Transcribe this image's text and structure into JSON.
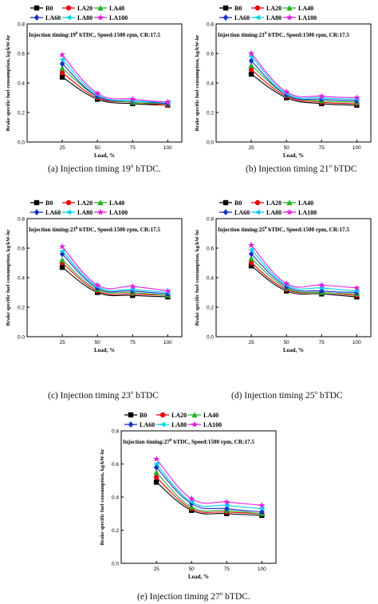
{
  "chart_data": [
    {
      "type": "line",
      "annotation": "Injection timing:19",
      "annotation_sup": "0",
      "annotation_rest": " bTDC, Speed:1500 rpm, CR:17.5",
      "caption": "(a) Injection timing 19",
      "caption_sup": "o",
      "caption_rest": " bTDC.",
      "xlabel": "Load, %",
      "ylabel": "Brake specific fuel consumption, kg/kW-hr",
      "x": [
        25,
        50,
        75,
        100
      ],
      "xlim": [
        0,
        110
      ],
      "ylim": [
        0.0,
        0.8
      ],
      "yticks": [
        0.0,
        0.2,
        0.4,
        0.6,
        0.8
      ],
      "xticks": [
        25,
        50,
        75,
        100
      ],
      "legend": "top-left",
      "series": [
        {
          "name": "B0",
          "values": [
            0.44,
            0.29,
            0.26,
            0.25
          ]
        },
        {
          "name": "LA20",
          "values": [
            0.47,
            0.3,
            0.27,
            0.25
          ]
        },
        {
          "name": "LA40",
          "values": [
            0.5,
            0.31,
            0.27,
            0.26
          ]
        },
        {
          "name": "LA60",
          "values": [
            0.53,
            0.31,
            0.28,
            0.26
          ]
        },
        {
          "name": "LA80",
          "values": [
            0.56,
            0.32,
            0.28,
            0.27
          ]
        },
        {
          "name": "LA100",
          "values": [
            0.59,
            0.33,
            0.29,
            0.27
          ]
        }
      ]
    },
    {
      "type": "line",
      "annotation": "Injection timing:21",
      "annotation_sup": "0",
      "annotation_rest": " bTDC, Speed:1500 rpm, CR:17.5",
      "caption": "(b) Injection timing 21",
      "caption_sup": "o",
      "caption_rest": " bTDC",
      "xlabel": "Load, %",
      "ylabel": "Brake specific fuel consumption, kg/kW-hr",
      "x": [
        25,
        50,
        75,
        100
      ],
      "xlim": [
        0,
        110
      ],
      "ylim": [
        0.0,
        0.8
      ],
      "yticks": [
        0.0,
        0.2,
        0.4,
        0.6,
        0.8
      ],
      "xticks": [
        25,
        50,
        75,
        100
      ],
      "legend": "top-left",
      "series": [
        {
          "name": "B0",
          "values": [
            0.46,
            0.3,
            0.26,
            0.25
          ]
        },
        {
          "name": "LA20",
          "values": [
            0.49,
            0.31,
            0.27,
            0.26
          ]
        },
        {
          "name": "LA40",
          "values": [
            0.52,
            0.32,
            0.28,
            0.27
          ]
        },
        {
          "name": "LA60",
          "values": [
            0.55,
            0.32,
            0.29,
            0.28
          ]
        },
        {
          "name": "LA80",
          "values": [
            0.58,
            0.33,
            0.3,
            0.29
          ]
        },
        {
          "name": "LA100",
          "values": [
            0.6,
            0.34,
            0.31,
            0.3
          ]
        }
      ]
    },
    {
      "type": "line",
      "annotation": "Injection timing:23",
      "annotation_sup": "0",
      "annotation_rest": " bTDC, Speed:1500 rpm, CR:17.5",
      "caption": "(c) Injection timing 23",
      "caption_sup": "o",
      "caption_rest": " bTDC",
      "xlabel": "Load, %",
      "ylabel": "Brake specific fuel consumption, kg/kW-hr",
      "x": [
        25,
        50,
        75,
        100
      ],
      "xlim": [
        0,
        110
      ],
      "ylim": [
        0.0,
        0.8
      ],
      "yticks": [
        0.0,
        0.2,
        0.4,
        0.6,
        0.8
      ],
      "xticks": [
        25,
        50,
        75,
        100
      ],
      "legend": "top-left",
      "series": [
        {
          "name": "B0",
          "values": [
            0.47,
            0.3,
            0.28,
            0.27
          ]
        },
        {
          "name": "LA20",
          "values": [
            0.5,
            0.31,
            0.29,
            0.28
          ]
        },
        {
          "name": "LA40",
          "values": [
            0.52,
            0.32,
            0.3,
            0.28
          ]
        },
        {
          "name": "LA60",
          "values": [
            0.56,
            0.33,
            0.31,
            0.29
          ]
        },
        {
          "name": "LA80",
          "values": [
            0.58,
            0.34,
            0.32,
            0.3
          ]
        },
        {
          "name": "LA100",
          "values": [
            0.61,
            0.35,
            0.34,
            0.31
          ]
        }
      ]
    },
    {
      "type": "line",
      "annotation": "Injection timing:25",
      "annotation_sup": "0",
      "annotation_rest": " bTDC, Speed:1500 rpm, CR:17.5",
      "caption": "(d) Injection timing 25",
      "caption_sup": "o",
      "caption_rest": " bTDC",
      "xlabel": "Load, %",
      "ylabel": "Brake specific fuel consumption, kg/kW-hr",
      "x": [
        25,
        50,
        75,
        100
      ],
      "xlim": [
        0,
        110
      ],
      "ylim": [
        0.0,
        0.8
      ],
      "yticks": [
        0.0,
        0.2,
        0.4,
        0.6,
        0.8
      ],
      "xticks": [
        25,
        50,
        75,
        100
      ],
      "legend": "top-left",
      "series": [
        {
          "name": "B0",
          "values": [
            0.48,
            0.31,
            0.29,
            0.27
          ]
        },
        {
          "name": "LA20",
          "values": [
            0.5,
            0.32,
            0.3,
            0.28
          ]
        },
        {
          "name": "LA40",
          "values": [
            0.53,
            0.33,
            0.3,
            0.29
          ]
        },
        {
          "name": "LA60",
          "values": [
            0.56,
            0.34,
            0.31,
            0.3
          ]
        },
        {
          "name": "LA80",
          "values": [
            0.59,
            0.35,
            0.33,
            0.31
          ]
        },
        {
          "name": "LA100",
          "values": [
            0.62,
            0.36,
            0.35,
            0.33
          ]
        }
      ]
    },
    {
      "type": "line",
      "annotation": "Injection timing:27",
      "annotation_sup": "0",
      "annotation_rest": " bTDC, Speed:1500 rpm, CR:17.5",
      "caption": "(e) Injection timing 27",
      "caption_sup": "o",
      "caption_rest": " bTDC.",
      "xlabel": "Load, %",
      "ylabel": "Brake specific fuel consumption, kg/kW-hr",
      "x": [
        25,
        50,
        75,
        100
      ],
      "xlim": [
        0,
        110
      ],
      "ylim": [
        0.0,
        0.8
      ],
      "yticks": [
        0.0,
        0.2,
        0.4,
        0.6,
        0.8
      ],
      "xticks": [
        25,
        50,
        75,
        100
      ],
      "legend": "top-left",
      "series": [
        {
          "name": "B0",
          "values": [
            0.49,
            0.32,
            0.3,
            0.29
          ]
        },
        {
          "name": "LA20",
          "values": [
            0.52,
            0.33,
            0.31,
            0.3
          ]
        },
        {
          "name": "LA40",
          "values": [
            0.55,
            0.34,
            0.32,
            0.3
          ]
        },
        {
          "name": "LA60",
          "values": [
            0.58,
            0.36,
            0.33,
            0.31
          ]
        },
        {
          "name": "LA80",
          "values": [
            0.6,
            0.37,
            0.35,
            0.33
          ]
        },
        {
          "name": "LA100",
          "values": [
            0.63,
            0.39,
            0.37,
            0.35
          ]
        }
      ]
    }
  ],
  "series_styles": [
    {
      "color": "#000000",
      "marker": "square"
    },
    {
      "color": "#e8000b",
      "marker": "circle"
    },
    {
      "color": "#22b022",
      "marker": "triangle"
    },
    {
      "color": "#1530c8",
      "marker": "diamond"
    },
    {
      "color": "#00d0f0",
      "marker": "triangle-left"
    },
    {
      "color": "#e020e0",
      "marker": "star"
    }
  ]
}
